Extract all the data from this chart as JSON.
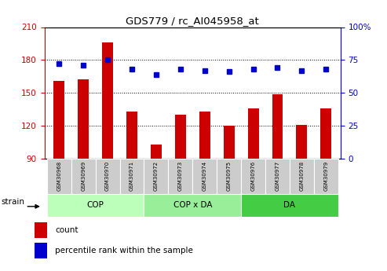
{
  "title": "GDS779 / rc_AI045958_at",
  "samples": [
    "GSM30968",
    "GSM30969",
    "GSM30970",
    "GSM30971",
    "GSM30972",
    "GSM30973",
    "GSM30974",
    "GSM30975",
    "GSM30976",
    "GSM30977",
    "GSM30978",
    "GSM30979"
  ],
  "bar_values": [
    161,
    162,
    196,
    133,
    103,
    130,
    133,
    120,
    136,
    149,
    121,
    136
  ],
  "dot_values_pct": [
    72,
    71,
    75,
    68,
    64,
    68,
    67,
    66,
    68,
    69,
    67,
    68
  ],
  "bar_color": "#cc0000",
  "dot_color": "#0000cc",
  "ylim_left": [
    90,
    210
  ],
  "ylim_right": [
    0,
    100
  ],
  "yticks_left": [
    90,
    120,
    150,
    180,
    210
  ],
  "yticks_right": [
    0,
    25,
    50,
    75,
    100
  ],
  "groups": [
    {
      "label": "COP",
      "start": 0,
      "end": 3
    },
    {
      "label": "COP x DA",
      "start": 4,
      "end": 7
    },
    {
      "label": "DA",
      "start": 8,
      "end": 11
    }
  ],
  "group_colors": [
    "#bbffbb",
    "#99ee99",
    "#44cc44"
  ],
  "legend_count_label": "count",
  "legend_pct_label": "percentile rank within the sample",
  "strain_label": "strain",
  "bar_color_left": "#cc0000",
  "tick_color_right": "#0000cc",
  "sample_bg_color": "#cccccc"
}
